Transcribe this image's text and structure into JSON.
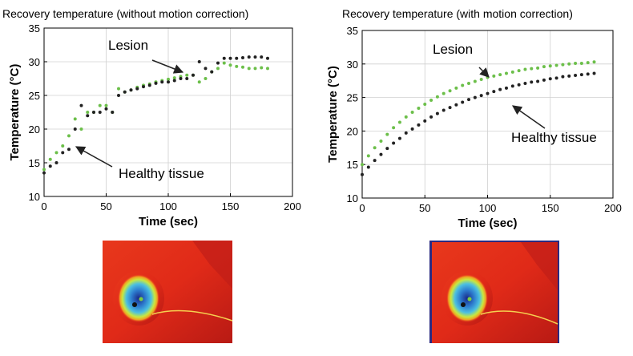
{
  "chart_data": [
    {
      "type": "scatter",
      "title": "Recovery temperature (without motion correction)",
      "x_label": "Time (sec)",
      "y_label": "Temperature (°C)",
      "x": [
        0,
        5,
        10,
        15,
        20,
        25,
        30,
        35,
        40,
        45,
        50,
        55,
        60,
        65,
        70,
        75,
        80,
        85,
        90,
        95,
        100,
        105,
        110,
        115,
        120,
        125,
        130,
        135,
        140,
        145,
        150,
        155,
        160,
        165,
        170,
        175,
        180
      ],
      "series": [
        {
          "name": "Lesion",
          "color": "#6cbf4a",
          "values": [
            14,
            15.5,
            16.5,
            17.5,
            19,
            21.5,
            20,
            22.5,
            22.5,
            23.5,
            23.5,
            22.5,
            26,
            25.5,
            25.8,
            26.2,
            26.5,
            26.7,
            27,
            27.2,
            27.4,
            27.6,
            27.8,
            28,
            28,
            27,
            27.5,
            28.5,
            29,
            29.8,
            29.5,
            29.3,
            29.2,
            29,
            29,
            29.1,
            29
          ]
        },
        {
          "name": "Healthy tissue",
          "color": "#222222",
          "values": [
            13.5,
            14.5,
            15,
            16.5,
            17,
            20,
            23.5,
            22,
            22.5,
            22.5,
            23,
            22.5,
            25,
            25.5,
            25.8,
            26,
            26.3,
            26.5,
            26.8,
            27,
            27,
            27.2,
            27.5,
            27.5,
            28,
            30,
            29,
            28.5,
            29.8,
            30.5,
            30.5,
            30.5,
            30.6,
            30.7,
            30.7,
            30.7,
            30.5
          ]
        }
      ],
      "xlim": [
        0,
        200
      ],
      "xticks": [
        0,
        50,
        100,
        150,
        200
      ],
      "ylim": [
        10,
        35
      ],
      "yticks": [
        10,
        15,
        20,
        25,
        30,
        35
      ],
      "grid": true
    },
    {
      "type": "scatter",
      "title": "Recovery temperature (with motion correction)",
      "x_label": "Time (sec)",
      "y_label": "Temperature (°C)",
      "x": [
        0,
        5,
        10,
        15,
        20,
        25,
        30,
        35,
        40,
        45,
        50,
        55,
        60,
        65,
        70,
        75,
        80,
        85,
        90,
        95,
        100,
        105,
        110,
        115,
        120,
        125,
        130,
        135,
        140,
        145,
        150,
        155,
        160,
        165,
        170,
        175,
        180,
        185
      ],
      "series": [
        {
          "name": "Lesion",
          "color": "#6cbf4a",
          "values": [
            15,
            16.3,
            17.5,
            18.5,
            19.5,
            20.5,
            21.3,
            22.1,
            22.8,
            23.4,
            24.0,
            24.6,
            25.1,
            25.6,
            26.0,
            26.4,
            26.8,
            27.1,
            27.4,
            27.7,
            28.0,
            28.2,
            28.4,
            28.6,
            28.8,
            29.0,
            29.2,
            29.3,
            29.4,
            29.6,
            29.7,
            29.8,
            29.9,
            30.0,
            30.1,
            30.1,
            30.2,
            30.3
          ]
        },
        {
          "name": "Healthy tissue",
          "color": "#222222",
          "values": [
            13.5,
            14.6,
            15.6,
            16.5,
            17.4,
            18.2,
            18.9,
            19.7,
            20.3,
            20.9,
            21.5,
            22.1,
            22.6,
            23.1,
            23.5,
            23.9,
            24.3,
            24.7,
            25.0,
            25.3,
            25.6,
            25.9,
            26.2,
            26.4,
            26.7,
            26.9,
            27.1,
            27.3,
            27.4,
            27.6,
            27.8,
            27.9,
            28.1,
            28.2,
            28.3,
            28.4,
            28.5,
            28.6
          ]
        }
      ],
      "xlim": [
        0,
        200
      ],
      "xticks": [
        0,
        50,
        100,
        150,
        200
      ],
      "ylim": [
        10,
        35
      ],
      "yticks": [
        10,
        15,
        20,
        25,
        30,
        35
      ],
      "grid": true
    }
  ]
}
